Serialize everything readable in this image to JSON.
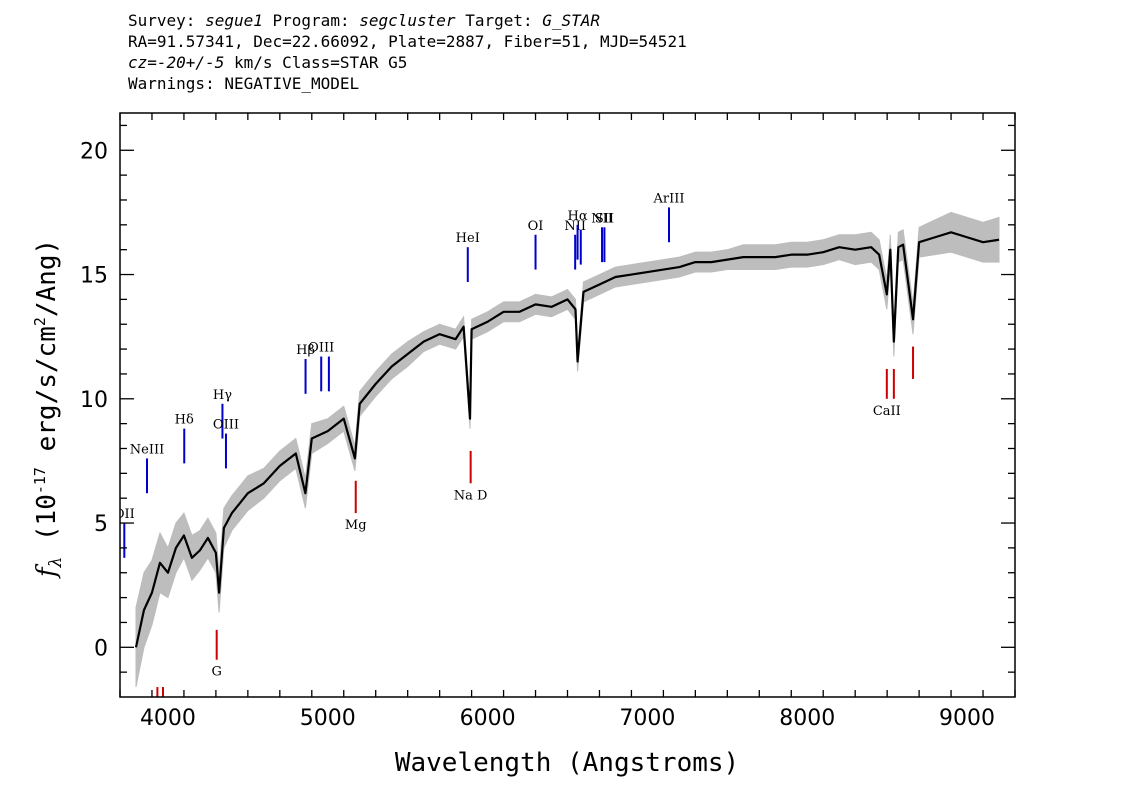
{
  "header": {
    "survey_label": "Survey:",
    "survey": "segue1",
    "program_label": "Program:",
    "program": "segcluster",
    "target_label": "Target:",
    "target": "G_STAR",
    "line2": "RA=91.57341, Dec=22.66092, Plate=2887, Fiber=51, MJD=54521",
    "cz": "cz=-20+/-5",
    "cz_rest": " km/s  Class=STAR  G5",
    "warnings": "Warnings: NEGATIVE_MODEL"
  },
  "chart_data": {
    "type": "line",
    "xlabel": "Wavelength (Angstroms)",
    "ylabel": "f_λ (10^-17 erg/s/cm^2/Ang)",
    "xlim": [
      3700,
      9300
    ],
    "ylim": [
      -2,
      21.5
    ],
    "x_ticks": [
      4000,
      5000,
      6000,
      7000,
      8000,
      9000
    ],
    "y_ticks": [
      0,
      5,
      10,
      15,
      20
    ],
    "x_tick_labels": [
      "4000",
      "5000",
      "6000",
      "7000",
      "8000",
      "9000"
    ],
    "y_tick_labels": [
      "0",
      "5",
      "10",
      "15",
      "20"
    ],
    "grid": false,
    "colors": {
      "flux": "#000000",
      "error_band": "#bdbdbd",
      "emission": "#0000cc",
      "absorption": "#cc0000"
    },
    "spectrum": {
      "x": [
        3800,
        3850,
        3900,
        3950,
        4000,
        4050,
        4100,
        4150,
        4200,
        4250,
        4300,
        4320,
        4350,
        4400,
        4450,
        4500,
        4600,
        4700,
        4800,
        4860,
        4900,
        5000,
        5100,
        5170,
        5200,
        5300,
        5400,
        5500,
        5600,
        5700,
        5800,
        5850,
        5890,
        5900,
        6000,
        6100,
        6200,
        6300,
        6400,
        6500,
        6550,
        6563,
        6600,
        6700,
        6800,
        6900,
        7000,
        7100,
        7200,
        7300,
        7400,
        7500,
        7600,
        7700,
        7800,
        7900,
        8000,
        8100,
        8200,
        8300,
        8400,
        8450,
        8498,
        8520,
        8542,
        8570,
        8600,
        8662,
        8700,
        8800,
        8900,
        9000,
        9100,
        9200
      ],
      "y": [
        0.0,
        1.5,
        2.2,
        3.4,
        3.0,
        4.0,
        4.5,
        3.6,
        3.9,
        4.4,
        3.8,
        2.2,
        4.8,
        5.4,
        5.8,
        6.2,
        6.6,
        7.3,
        7.8,
        6.2,
        8.4,
        8.7,
        9.2,
        7.6,
        9.8,
        10.6,
        11.3,
        11.8,
        12.3,
        12.6,
        12.4,
        12.9,
        9.2,
        12.8,
        13.1,
        13.5,
        13.5,
        13.8,
        13.7,
        14.0,
        13.6,
        11.5,
        14.3,
        14.6,
        14.9,
        15.0,
        15.1,
        15.2,
        15.3,
        15.5,
        15.5,
        15.6,
        15.7,
        15.7,
        15.7,
        15.8,
        15.8,
        15.9,
        16.1,
        16.0,
        16.1,
        15.8,
        14.2,
        16.0,
        12.3,
        16.1,
        16.2,
        13.2,
        16.3,
        16.5,
        16.7,
        16.5,
        16.3,
        16.4
      ],
      "error": [
        1.6,
        1.5,
        1.3,
        1.2,
        1.0,
        1.0,
        0.9,
        0.9,
        0.8,
        0.8,
        0.8,
        0.8,
        0.8,
        0.7,
        0.7,
        0.7,
        0.6,
        0.6,
        0.6,
        0.6,
        0.6,
        0.5,
        0.5,
        0.5,
        0.5,
        0.5,
        0.5,
        0.5,
        0.4,
        0.4,
        0.4,
        0.4,
        0.4,
        0.4,
        0.4,
        0.4,
        0.4,
        0.4,
        0.4,
        0.4,
        0.4,
        0.4,
        0.4,
        0.4,
        0.4,
        0.4,
        0.4,
        0.4,
        0.4,
        0.4,
        0.4,
        0.4,
        0.5,
        0.5,
        0.5,
        0.5,
        0.5,
        0.5,
        0.5,
        0.6,
        0.6,
        0.6,
        0.6,
        0.6,
        0.6,
        0.6,
        0.6,
        0.6,
        0.6,
        0.7,
        0.8,
        0.8,
        0.8,
        0.9
      ]
    },
    "emission_lines": [
      {
        "label": "OII",
        "x": 3727,
        "y0": 3.6,
        "y1": 5.0
      },
      {
        "label": "NeIII",
        "x": 3869,
        "y0": 6.2,
        "y1": 7.6
      },
      {
        "label": "Hδ",
        "x": 4102,
        "y0": 7.4,
        "y1": 8.8
      },
      {
        "label": "Hγ",
        "x": 4341,
        "y0": 8.4,
        "y1": 9.8
      },
      {
        "label": "OIII",
        "x": 4363,
        "y0": 7.2,
        "y1": 8.6
      },
      {
        "label": "Hβ",
        "x": 4861,
        "y0": 10.2,
        "y1": 11.6
      },
      {
        "label": "OIII",
        "x": 4959,
        "y0": 10.3,
        "y1": 11.7
      },
      {
        "label": "",
        "x": 5007,
        "y0": 10.3,
        "y1": 11.7
      },
      {
        "label": "HeI",
        "x": 5876,
        "y0": 14.7,
        "y1": 16.1
      },
      {
        "label": "OI",
        "x": 6300,
        "y0": 15.2,
        "y1": 16.6
      },
      {
        "label": "NII",
        "x": 6548,
        "y0": 15.2,
        "y1": 16.6
      },
      {
        "label": "Hα",
        "x": 6563,
        "y0": 15.6,
        "y1": 17.0
      },
      {
        "label": "",
        "x": 6583,
        "y0": 15.4,
        "y1": 16.8
      },
      {
        "label": "NII",
        "x": 6716,
        "y0": 15.5,
        "y1": 16.9
      },
      {
        "label": "SII",
        "x": 6731,
        "y0": 15.5,
        "y1": 16.9
      },
      {
        "label": "ArIII",
        "x": 7135,
        "y0": 16.3,
        "y1": 17.7
      }
    ],
    "absorption_lines": [
      {
        "label": "G",
        "x": 4305,
        "y0": 0.7,
        "y1": -0.5
      },
      {
        "label": "Mg",
        "x": 5175,
        "y0": 6.7,
        "y1": 5.4
      },
      {
        "label": "Na D",
        "x": 5894,
        "y0": 7.9,
        "y1": 6.6
      },
      {
        "label": "CaII",
        "x": 8498,
        "y0": 11.2,
        "y1": 10.0
      },
      {
        "label": "",
        "x": 8542,
        "y0": 11.2,
        "y1": 10.0
      },
      {
        "label": "",
        "x": 8662,
        "y0": 12.1,
        "y1": 10.8
      },
      {
        "label": "",
        "x": 3934,
        "y0": -1.6,
        "y1": -2.0
      },
      {
        "label": "",
        "x": 3969,
        "y0": -1.6,
        "y1": -2.0
      }
    ]
  }
}
